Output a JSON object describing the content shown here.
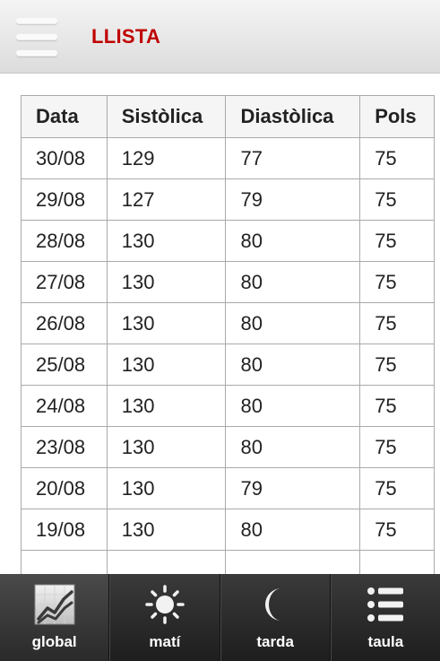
{
  "header": {
    "title": "LLISTA"
  },
  "table": {
    "columns": [
      "Data",
      "Sistòlica",
      "Diastòlica",
      "Pols"
    ],
    "rows": [
      [
        "30/08",
        "129",
        "77",
        "75"
      ],
      [
        "29/08",
        "127",
        "79",
        "75"
      ],
      [
        "28/08",
        "130",
        "80",
        "75"
      ],
      [
        "27/08",
        "130",
        "80",
        "75"
      ],
      [
        "26/08",
        "130",
        "80",
        "75"
      ],
      [
        "25/08",
        "130",
        "80",
        "75"
      ],
      [
        "24/08",
        "130",
        "80",
        "75"
      ],
      [
        "23/08",
        "130",
        "80",
        "75"
      ],
      [
        "20/08",
        "130",
        "79",
        "75"
      ],
      [
        "19/08",
        "130",
        "80",
        "75"
      ],
      [
        "",
        "",
        "",
        ""
      ]
    ]
  },
  "tabbar": {
    "items": [
      {
        "label": "global",
        "icon": "chart-icon",
        "active": true
      },
      {
        "label": "matí",
        "icon": "sun-icon",
        "active": false
      },
      {
        "label": "tarda",
        "icon": "moon-icon",
        "active": false
      },
      {
        "label": "taula",
        "icon": "list-icon",
        "active": false
      }
    ]
  },
  "colors": {
    "title": "#c00000",
    "tabbar": "#2a2a2a"
  }
}
